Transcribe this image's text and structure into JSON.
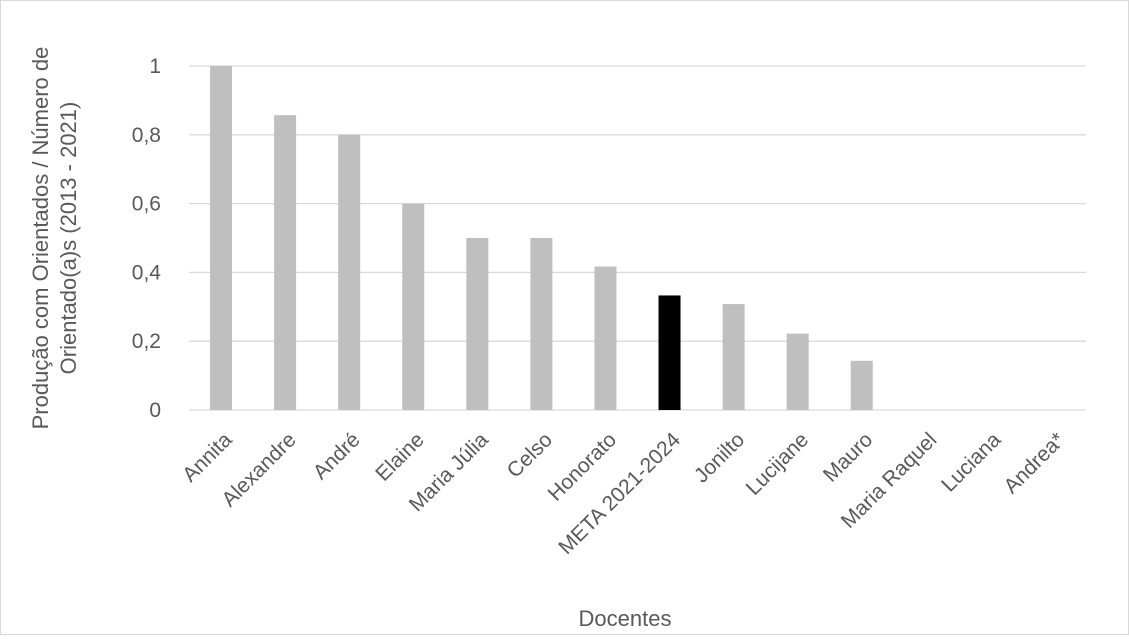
{
  "chart_data": {
    "type": "bar",
    "title": "",
    "xlabel": "Docentes",
    "ylabel_lines": [
      "Produção com Orientados / Número de",
      "Orientado(a)s (2013 - 2021)"
    ],
    "categories": [
      "Annita",
      "Alexandre",
      "André",
      "Elaine",
      "Maria Júlia",
      "Celso",
      "Honorato",
      "META 2021-2024",
      "Jonilto",
      "Lucijane",
      "Mauro",
      "Maria Raquel",
      "Luciana",
      "Andrea*"
    ],
    "values": [
      1.0,
      0.857,
      0.8,
      0.6,
      0.5,
      0.5,
      0.417,
      0.333,
      0.308,
      0.222,
      0.143,
      0,
      0,
      0
    ],
    "highlight_category": "META 2021-2024",
    "colors": {
      "bar": "#bfbfbf",
      "highlight": "#000000",
      "grid": "#d9d9d9",
      "text": "#595959"
    },
    "ylim": [
      0,
      1
    ],
    "yticks": [
      {
        "value": 0,
        "label": "0"
      },
      {
        "value": 0.2,
        "label": "0,2"
      },
      {
        "value": 0.4,
        "label": "0,4"
      },
      {
        "value": 0.6,
        "label": "0,6"
      },
      {
        "value": 0.8,
        "label": "0,8"
      },
      {
        "value": 1,
        "label": "1"
      }
    ],
    "grid": true,
    "legend": "none"
  }
}
